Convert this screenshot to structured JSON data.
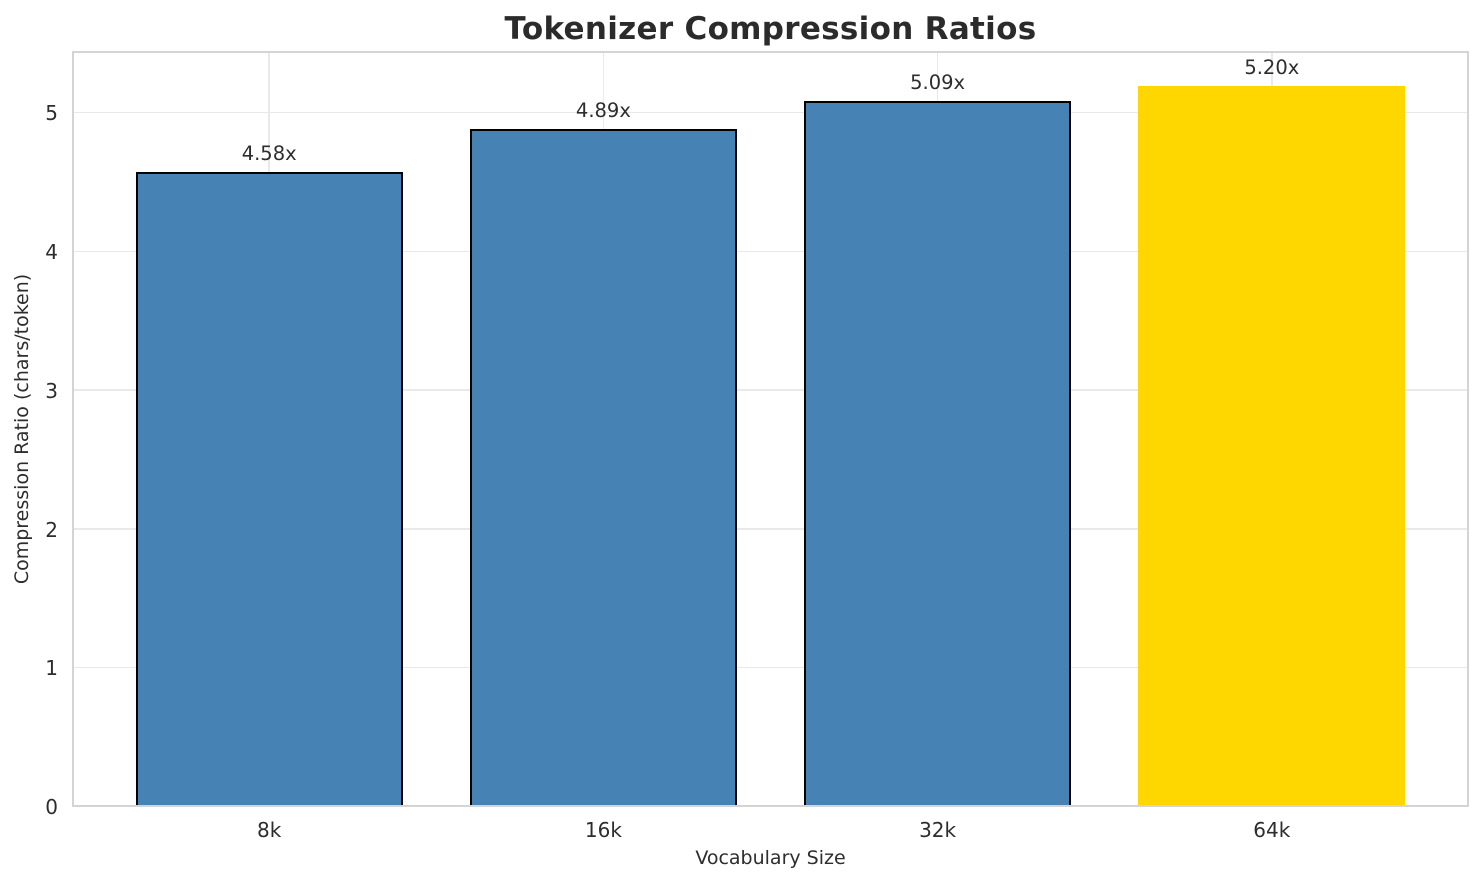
{
  "chart_data": {
    "type": "bar",
    "title": "Tokenizer Compression Ratios",
    "xlabel": "Vocabulary Size",
    "ylabel": "Compression Ratio (chars/token)",
    "categories": [
      "8k",
      "16k",
      "32k",
      "64k"
    ],
    "values": [
      4.58,
      4.89,
      5.09,
      5.2
    ],
    "bar_labels": [
      "4.58x",
      "4.89x",
      "5.09x",
      "5.20x"
    ],
    "bar_colors": [
      "#4682B4",
      "#4682B4",
      "#4682B4",
      "#FFD700"
    ],
    "bar_edge_colors": [
      "#000000",
      "#000000",
      "#000000",
      "none"
    ],
    "highlight_category": "64k",
    "yticks": [
      0,
      1,
      2,
      3,
      4,
      5
    ],
    "ylim": [
      0,
      5.45
    ],
    "grid": true,
    "legend": "none",
    "colors": {
      "bar": "#4682B4",
      "highlight_bar": "#FFD700",
      "bar_edge": "#000000",
      "grid": "#e9e9e9",
      "spine": "#d4d4d4",
      "text": "#2d2d2d",
      "title_text": "#2b2b2b",
      "background": "#ffffff"
    }
  }
}
